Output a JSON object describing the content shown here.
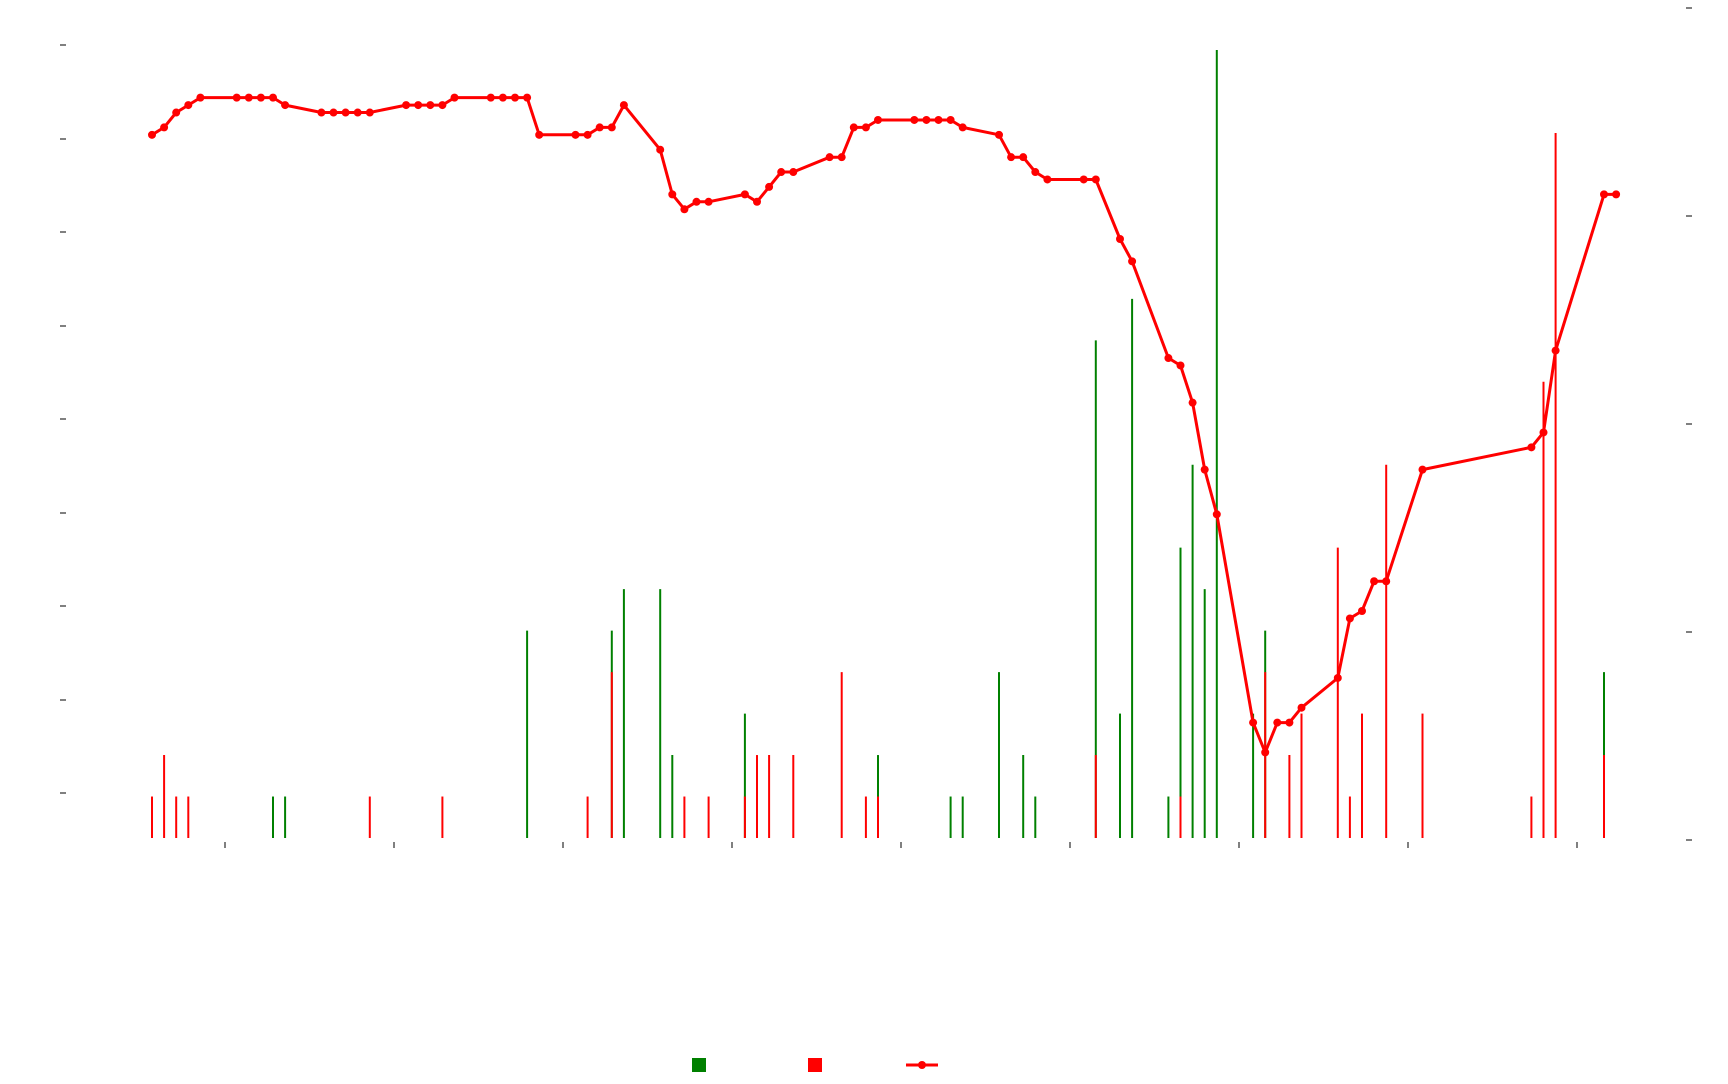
{
  "chart_data": {
    "type": "bar+line",
    "title": "",
    "xlabel": "",
    "ylabel_left": "",
    "ylabel_right": "",
    "grid": false,
    "legend_position": "bottom-center",
    "colors": {
      "positive": "#008000",
      "negative": "#ff0000",
      "line": "#ff0000",
      "axis": "#000000"
    },
    "x_count": 121,
    "bar_ylim": [
      0,
      190
    ],
    "bar_series": [
      {
        "key": "positive",
        "bars": [
          {
            "x": 10,
            "v": 10
          },
          {
            "x": 11,
            "v": 10
          },
          {
            "x": 31,
            "v": 50
          },
          {
            "x": 38,
            "v": 50
          },
          {
            "x": 39,
            "v": 60
          },
          {
            "x": 42,
            "v": 60
          },
          {
            "x": 43,
            "v": 20
          },
          {
            "x": 49,
            "v": 30
          },
          {
            "x": 60,
            "v": 20
          },
          {
            "x": 66,
            "v": 10
          },
          {
            "x": 67,
            "v": 10
          },
          {
            "x": 70,
            "v": 40
          },
          {
            "x": 72,
            "v": 20
          },
          {
            "x": 73,
            "v": 10
          },
          {
            "x": 78,
            "v": 120
          },
          {
            "x": 80,
            "v": 30
          },
          {
            "x": 81,
            "v": 130
          },
          {
            "x": 84,
            "v": 10
          },
          {
            "x": 85,
            "v": 70
          },
          {
            "x": 86,
            "v": 90
          },
          {
            "x": 87,
            "v": 60
          },
          {
            "x": 88,
            "v": 190
          },
          {
            "x": 91,
            "v": 30
          },
          {
            "x": 92,
            "v": 50
          },
          {
            "x": 120,
            "v": 40
          }
        ]
      },
      {
        "key": "negative",
        "bars": [
          {
            "x": 0,
            "v": 10
          },
          {
            "x": 1,
            "v": 20
          },
          {
            "x": 2,
            "v": 10
          },
          {
            "x": 3,
            "v": 10
          },
          {
            "x": 18,
            "v": 10
          },
          {
            "x": 24,
            "v": 10
          },
          {
            "x": 36,
            "v": 10
          },
          {
            "x": 38,
            "v": 40
          },
          {
            "x": 44,
            "v": 10
          },
          {
            "x": 46,
            "v": 10
          },
          {
            "x": 49,
            "v": 10
          },
          {
            "x": 50,
            "v": 20
          },
          {
            "x": 51,
            "v": 20
          },
          {
            "x": 53,
            "v": 20
          },
          {
            "x": 57,
            "v": 40
          },
          {
            "x": 59,
            "v": 10
          },
          {
            "x": 60,
            "v": 10
          },
          {
            "x": 78,
            "v": 20
          },
          {
            "x": 85,
            "v": 10
          },
          {
            "x": 92,
            "v": 40
          },
          {
            "x": 94,
            "v": 20
          },
          {
            "x": 95,
            "v": 30
          },
          {
            "x": 98,
            "v": 70
          },
          {
            "x": 99,
            "v": 10
          },
          {
            "x": 100,
            "v": 30
          },
          {
            "x": 102,
            "v": 90
          },
          {
            "x": 105,
            "v": 30
          },
          {
            "x": 114,
            "v": 10
          },
          {
            "x": 115,
            "v": 110
          },
          {
            "x": 116,
            "v": 170
          },
          {
            "x": 120,
            "v": 20
          }
        ]
      }
    ],
    "line_ylim": [
      0,
      1
    ],
    "line_series": {
      "key": "line",
      "points": [
        [
          0,
          0.89
        ],
        [
          1,
          0.9
        ],
        [
          2,
          0.92
        ],
        [
          3,
          0.93
        ],
        [
          4,
          0.94
        ],
        [
          7,
          0.94
        ],
        [
          8,
          0.94
        ],
        [
          9,
          0.94
        ],
        [
          10,
          0.94
        ],
        [
          11,
          0.93
        ],
        [
          14,
          0.92
        ],
        [
          15,
          0.92
        ],
        [
          16,
          0.92
        ],
        [
          17,
          0.92
        ],
        [
          18,
          0.92
        ],
        [
          21,
          0.93
        ],
        [
          22,
          0.93
        ],
        [
          23,
          0.93
        ],
        [
          24,
          0.93
        ],
        [
          25,
          0.94
        ],
        [
          28,
          0.94
        ],
        [
          29,
          0.94
        ],
        [
          30,
          0.94
        ],
        [
          31,
          0.94
        ],
        [
          32,
          0.89
        ],
        [
          35,
          0.89
        ],
        [
          36,
          0.89
        ],
        [
          37,
          0.9
        ],
        [
          38,
          0.9
        ],
        [
          39,
          0.93
        ],
        [
          42,
          0.87
        ],
        [
          43,
          0.81
        ],
        [
          44,
          0.79
        ],
        [
          45,
          0.8
        ],
        [
          46,
          0.8
        ],
        [
          49,
          0.81
        ],
        [
          50,
          0.8
        ],
        [
          51,
          0.82
        ],
        [
          52,
          0.84
        ],
        [
          53,
          0.84
        ],
        [
          56,
          0.86
        ],
        [
          57,
          0.86
        ],
        [
          58,
          0.9
        ],
        [
          59,
          0.9
        ],
        [
          60,
          0.91
        ],
        [
          63,
          0.91
        ],
        [
          64,
          0.91
        ],
        [
          65,
          0.91
        ],
        [
          66,
          0.91
        ],
        [
          67,
          0.9
        ],
        [
          70,
          0.89
        ],
        [
          71,
          0.86
        ],
        [
          72,
          0.86
        ],
        [
          73,
          0.84
        ],
        [
          74,
          0.83
        ],
        [
          77,
          0.83
        ],
        [
          78,
          0.83
        ],
        [
          80,
          0.75
        ],
        [
          81,
          0.72
        ],
        [
          84,
          0.59
        ],
        [
          85,
          0.58
        ],
        [
          86,
          0.53
        ],
        [
          87,
          0.44
        ],
        [
          88,
          0.38
        ],
        [
          91,
          0.1
        ],
        [
          92,
          0.06
        ],
        [
          93,
          0.1
        ],
        [
          94,
          0.1
        ],
        [
          95,
          0.12
        ],
        [
          98,
          0.16
        ],
        [
          99,
          0.24
        ],
        [
          100,
          0.25
        ],
        [
          101,
          0.29
        ],
        [
          102,
          0.29
        ],
        [
          105,
          0.44
        ],
        [
          114,
          0.47
        ],
        [
          115,
          0.49
        ],
        [
          116,
          0.6
        ],
        [
          120,
          0.81
        ],
        [
          121,
          0.81
        ]
      ]
    },
    "legend": [
      {
        "key": "positive",
        "shape": "square"
      },
      {
        "key": "negative",
        "shape": "square"
      },
      {
        "key": "line",
        "shape": "line-dot"
      }
    ]
  }
}
